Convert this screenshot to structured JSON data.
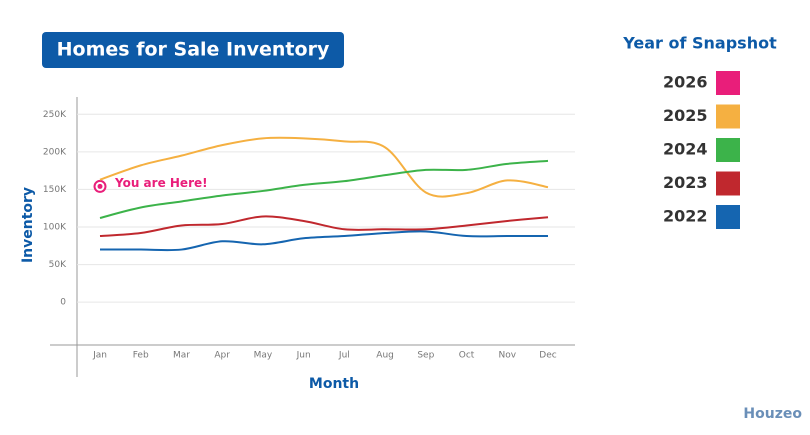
{
  "chart_data": {
    "type": "line",
    "title": "Homes for Sale Inventory",
    "x_label": "Month",
    "y_label": "Inventory",
    "legend_title": "Year of Snapshot",
    "legend": "right",
    "annotation": "You are Here!",
    "brand": "Houzeo",
    "grid": true,
    "categories": [
      "Jan",
      "Feb",
      "Mar",
      "Apr",
      "May",
      "Jun",
      "Jul",
      "Aug",
      "Sep",
      "Oct",
      "Nov",
      "Dec"
    ],
    "ylim": [
      -57000,
      273000
    ],
    "yticks": [
      0,
      {
        "value": 50000,
        "label": "50K"
      },
      {
        "value": 100000,
        "label": "100K"
      },
      {
        "value": 150000,
        "label": "150K"
      },
      {
        "value": 200000,
        "label": "200K"
      },
      {
        "value": 250000,
        "label": "250K"
      }
    ],
    "series": [
      {
        "name": "2026",
        "color": "#e91e7a",
        "values": [
          154000,
          null,
          null,
          null,
          null,
          null,
          null,
          null,
          null,
          null,
          null,
          null
        ]
      },
      {
        "name": "2025",
        "color": "#f5b041",
        "values": [
          163000,
          182000,
          195000,
          209000,
          218000,
          218000,
          214000,
          206000,
          146000,
          145000,
          162000,
          153000
        ]
      },
      {
        "name": "2024",
        "color": "#3cb34a",
        "values": [
          112000,
          126000,
          134000,
          142000,
          148000,
          156000,
          161000,
          169000,
          176000,
          176000,
          184000,
          188000
        ]
      },
      {
        "name": "2023",
        "color": "#c0282e",
        "values": [
          88000,
          92000,
          102000,
          104000,
          114000,
          108000,
          97000,
          97000,
          97000,
          102000,
          108000,
          113000
        ]
      },
      {
        "name": "2022",
        "color": "#1565b0",
        "values": [
          70000,
          70000,
          70000,
          81000,
          77000,
          85000,
          88000,
          92000,
          94000,
          88000,
          88000,
          88000
        ]
      }
    ]
  }
}
